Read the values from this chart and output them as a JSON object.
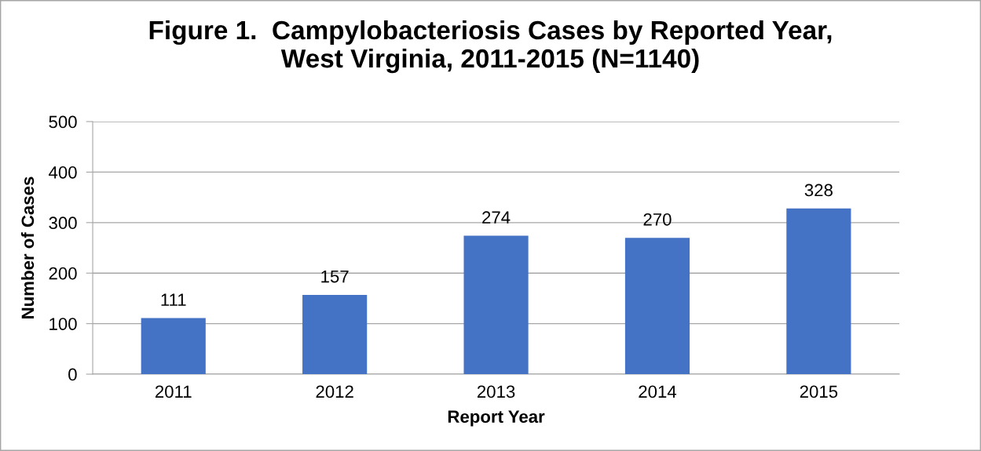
{
  "chart_data": {
    "type": "bar",
    "title": "Figure 1.  Campylobacteriosis Cases by Reported Year,\nWest Virginia, 2011-2015 (N=1140)",
    "xlabel": "Report Year",
    "ylabel": "Number of Cases",
    "categories": [
      "2011",
      "2012",
      "2013",
      "2014",
      "2015"
    ],
    "values": [
      111,
      157,
      274,
      270,
      328
    ],
    "color": "#4472c4",
    "ylim": [
      0,
      500
    ],
    "yticks": [
      0,
      100,
      200,
      300,
      400,
      500
    ],
    "grid": "y",
    "data_labels": true,
    "legend": false
  }
}
